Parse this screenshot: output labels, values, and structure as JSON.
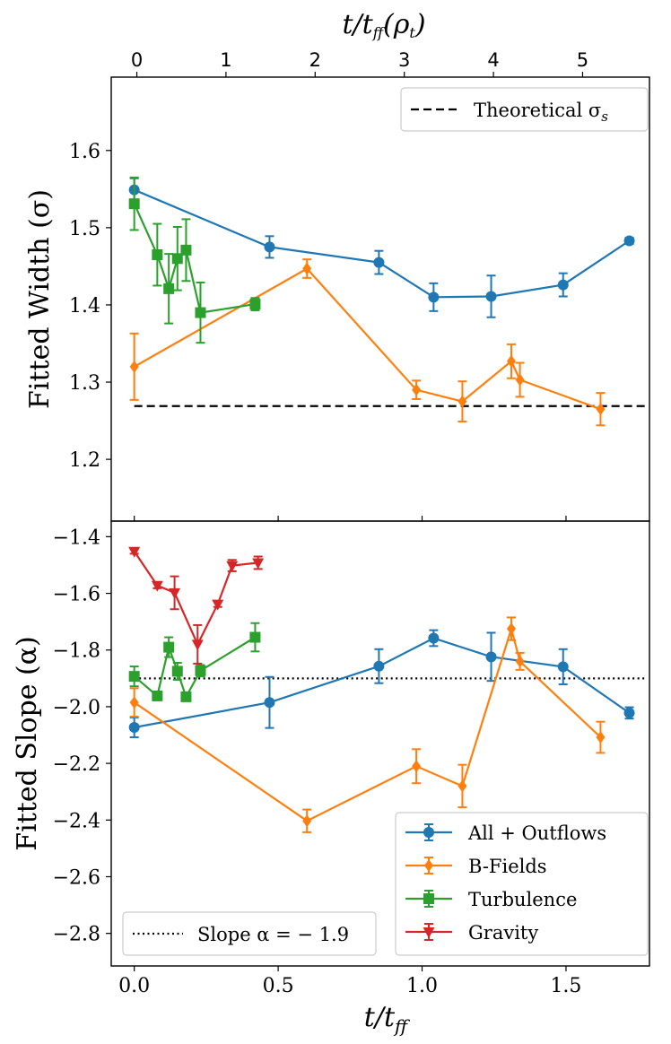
{
  "chart_data": [
    {
      "type": "line",
      "panel": "top",
      "ylabel": "Fitted Width (σ)",
      "xlabel_top": "t/t_ff(ρ_t)",
      "xlabel_top_parts": {
        "t": "t/t",
        "ff": "ff",
        "open": "(ρ",
        "t_sub": "t",
        "close": ")"
      },
      "xlim_top": [
        -0.287,
        5.75
      ],
      "top_ticks": [
        "0",
        "1",
        "2",
        "3",
        "4",
        "5"
      ],
      "ylim": [
        1.12,
        1.695
      ],
      "yticks": [
        "1.2",
        "1.3",
        "1.4",
        "1.5",
        "1.6"
      ],
      "xlim": [
        -0.08,
        1.79
      ],
      "reference": {
        "label": "Theoretical σ_s",
        "label_main": "Theoretical σ",
        "label_sub": "s",
        "y": 1.269,
        "x_range": [
          0.0,
          1.78
        ],
        "style": "dashed"
      },
      "series": [
        {
          "name": "All + Outflows",
          "color": "#1f77b4",
          "marker": "circle",
          "x": [
            0.0,
            0.47,
            0.85,
            1.04,
            1.24,
            1.49,
            1.72
          ],
          "y": [
            1.549,
            1.475,
            1.455,
            1.41,
            1.411,
            1.426,
            1.483
          ],
          "err": [
            0.015,
            0.014,
            0.015,
            0.018,
            0.027,
            0.015,
            0.004
          ]
        },
        {
          "name": "B-Fields",
          "color": "#ff7f0e",
          "marker": "diamond",
          "x": [
            0.0,
            0.6,
            0.98,
            1.14,
            1.31,
            1.34,
            1.62
          ],
          "y": [
            1.32,
            1.447,
            1.29,
            1.275,
            1.327,
            1.303,
            1.265
          ],
          "err": [
            0.043,
            0.012,
            0.012,
            0.026,
            0.022,
            0.022,
            0.021
          ]
        },
        {
          "name": "Turbulence",
          "color": "#2ca02c",
          "marker": "square",
          "x": [
            0.0,
            0.08,
            0.12,
            0.15,
            0.18,
            0.23,
            0.42
          ],
          "y": [
            1.531,
            1.465,
            1.421,
            1.46,
            1.471,
            1.39,
            1.401
          ],
          "err": [
            0.034,
            0.04,
            0.045,
            0.041,
            0.04,
            0.039,
            0.008
          ]
        }
      ]
    },
    {
      "type": "line",
      "panel": "bottom",
      "ylabel": "Fitted Slope (α)",
      "xlabel": "t/t_ff",
      "xlabel_parts": {
        "t": "t/t",
        "ff": "ff"
      },
      "xlim": [
        -0.08,
        1.79
      ],
      "xticks": [
        "0.0",
        "0.5",
        "1.0",
        "1.5"
      ],
      "ylim": [
        -2.915,
        -1.345
      ],
      "yticks": [
        "−1.4",
        "−1.6",
        "−1.8",
        "−2.0",
        "−2.2",
        "−2.4",
        "−2.6",
        "−2.8"
      ],
      "reference": {
        "label": "Slope α = −1.9",
        "label_main": "Slope α = − 1.9",
        "y": -1.9,
        "x_range": [
          0.0,
          1.78
        ],
        "style": "dotted"
      },
      "legend": [
        "All + Outflows",
        "B-Fields",
        "Turbulence",
        "Gravity"
      ],
      "series": [
        {
          "name": "All + Outflows",
          "color": "#1f77b4",
          "marker": "circle",
          "x": [
            0.0,
            0.47,
            0.85,
            1.04,
            1.24,
            1.49,
            1.72
          ],
          "y": [
            -2.073,
            -1.985,
            -1.857,
            -1.758,
            -1.824,
            -1.859,
            -2.022
          ],
          "err": [
            0.035,
            0.09,
            0.06,
            0.028,
            0.085,
            0.062,
            0.02
          ]
        },
        {
          "name": "B-Fields",
          "color": "#ff7f0e",
          "marker": "diamond",
          "x": [
            0.0,
            0.6,
            0.98,
            1.14,
            1.31,
            1.34,
            1.62
          ],
          "y": [
            -1.985,
            -2.403,
            -2.21,
            -2.28,
            -1.725,
            -1.84,
            -2.108
          ],
          "err": [
            0.05,
            0.04,
            0.06,
            0.075,
            0.04,
            0.03,
            0.055
          ]
        },
        {
          "name": "Turbulence",
          "color": "#2ca02c",
          "marker": "square",
          "x": [
            0.0,
            0.08,
            0.12,
            0.15,
            0.18,
            0.23,
            0.42
          ],
          "y": [
            -1.893,
            -1.962,
            -1.79,
            -1.875,
            -1.965,
            -1.873,
            -1.755
          ],
          "err": [
            0.035,
            0.012,
            0.035,
            0.03,
            0.012,
            0.02,
            0.05
          ]
        },
        {
          "name": "Gravity",
          "color": "#d62728",
          "marker": "triangle-down",
          "x": [
            0.0,
            0.08,
            0.14,
            0.22,
            0.29,
            0.34,
            0.43
          ],
          "y": [
            -1.452,
            -1.572,
            -1.598,
            -1.78,
            -1.638,
            -1.502,
            -1.492
          ],
          "err": [
            0.008,
            0.01,
            0.058,
            0.068,
            0.01,
            0.02,
            0.022
          ]
        }
      ]
    }
  ]
}
